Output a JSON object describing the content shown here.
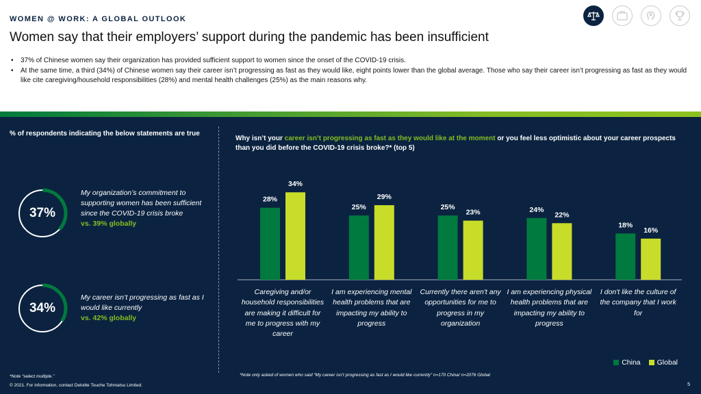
{
  "header": {
    "kicker": "WOMEN @ WORK: A GLOBAL OUTLOOK",
    "title": "Women say that their employers’ support during the pandemic has been insufficient"
  },
  "nav_icons": [
    "scales-icon",
    "briefcase-icon",
    "head-gears-icon",
    "trophy-icon"
  ],
  "bullets": [
    "37% of Chinese women say their organization has provided sufficient support to women since the onset of the COVID-19 crisis.",
    "At the same time, a third (34%) of Chinese women say their career isn’t progressing as fast as they would like, eight points lower than the global average. Those who say their career isn’t progressing as fast as they would like cite caregiving/household responsibilities (28%) and mental health challenges (25%) as the main reasons why."
  ],
  "left_panel": {
    "heading": "% of respondents indicating the below statements are true",
    "stats": [
      {
        "percent_label": "37%",
        "value": 37,
        "statement": "My organization’s commitment to supporting women has been sufficient since the COVID-19 crisis broke",
        "comparison": "vs. 39% globally"
      },
      {
        "percent_label": "34%",
        "value": 34,
        "statement": "My career isn’t progressing as fast as I would like currently",
        "comparison": "vs. 42% globally"
      }
    ]
  },
  "chart_title": {
    "part1": "Why isn’t your ",
    "highlight": "career isn’t progressing as fast as they would like at the moment",
    "part2": " or you feel less optimistic about your career prospects than you did before the COVID-19 crisis broke?* (top 5)"
  },
  "chart_data": {
    "type": "bar",
    "categories": [
      "Caregiving and/or household responsibilities are making it difficult for me to progress with my career",
      "I am experiencing mental health problems that are impacting my ability to progress",
      "Currently there aren't any opportunities for me to progress in my organization",
      "I am experiencing physical health problems that are impacting my ability to progress",
      "I don't like the culture of the company that I work for"
    ],
    "series": [
      {
        "name": "China",
        "values": [
          28,
          25,
          25,
          24,
          18
        ]
      },
      {
        "name": "Global",
        "values": [
          34,
          29,
          23,
          22,
          16
        ]
      }
    ],
    "value_labels": {
      "China": [
        "28%",
        "25%",
        "25%",
        "24%",
        "18%"
      ],
      "Global": [
        "34%",
        "29%",
        "23%",
        "22%",
        "16%"
      ]
    },
    "ylim": [
      0,
      35
    ],
    "grid": false,
    "legend": "bottom-right",
    "colors": {
      "China": "#007a3e",
      "Global": "#c8dc2a"
    }
  },
  "notes": {
    "left": "*Note “select multiple.”",
    "right": "*Note only asked of women who said “My career isn’t progressing as fast as I would like currently” n=170 China/ n=2076 Global",
    "copyright": "© 2021. For information, contact Deloitte Touche Tohmatsu Limited.",
    "page": "5"
  },
  "colors": {
    "navy": "#0b2340",
    "green_dark": "#007a3e",
    "green_light": "#86bc25"
  }
}
